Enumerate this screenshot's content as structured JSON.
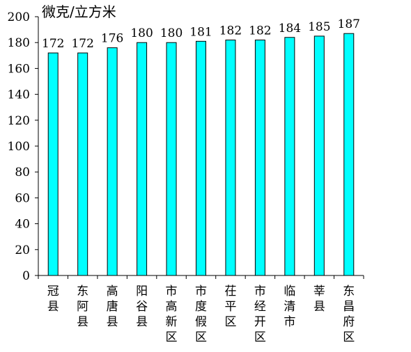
{
  "chart_data": {
    "type": "bar",
    "ylabel": "微克/立方米",
    "ylim": [
      0,
      200
    ],
    "yticks": [
      0,
      20,
      40,
      60,
      80,
      100,
      120,
      140,
      160,
      180,
      200
    ],
    "categories": [
      "冠县",
      "东阿县",
      "高唐县",
      "阳谷县",
      "市高新区",
      "市度假区",
      "茌平区",
      "市经开区",
      "临清市",
      "莘县",
      "东昌府区"
    ],
    "values": [
      172,
      172,
      176,
      180,
      180,
      181,
      182,
      182,
      184,
      185,
      187
    ],
    "colors": {
      "bar_fill": "#00ffff",
      "bar_stroke": "#000000",
      "axis": "#000000"
    },
    "grid": false
  }
}
